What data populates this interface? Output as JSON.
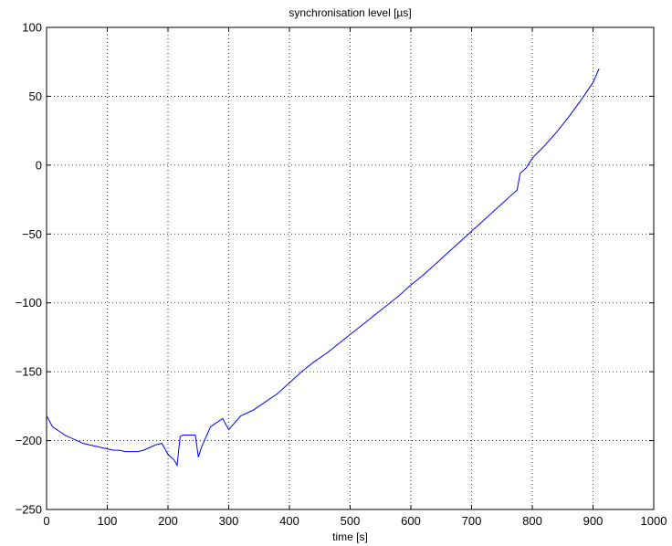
{
  "chart_data": {
    "type": "line",
    "title": "synchronisation level [µs]",
    "xlabel": "time [s]",
    "ylabel": "",
    "xlim": [
      0,
      1000
    ],
    "ylim": [
      -250,
      100
    ],
    "xticks": [
      0,
      100,
      200,
      300,
      400,
      500,
      600,
      700,
      800,
      900,
      1000
    ],
    "yticks": [
      -250,
      -200,
      -150,
      -100,
      -50,
      0,
      50,
      100
    ],
    "grid": true,
    "line_color": "#0000ff",
    "series": [
      {
        "x": [
          0,
          5,
          10,
          20,
          30,
          40,
          50,
          60,
          70,
          80,
          90,
          100,
          110,
          120,
          130,
          140,
          150,
          160,
          170,
          180,
          190,
          200,
          210,
          215,
          220,
          225,
          235,
          245,
          250,
          255,
          270,
          290,
          300,
          320,
          340,
          360,
          380,
          400,
          420,
          440,
          460,
          480,
          500,
          520,
          540,
          560,
          580,
          600,
          620,
          640,
          660,
          680,
          700,
          720,
          740,
          760,
          775,
          780,
          790,
          800,
          820,
          840,
          860,
          880,
          900,
          910
        ],
        "y": [
          -182,
          -186,
          -190,
          -193,
          -196,
          -198,
          -200,
          -202,
          -203,
          -204,
          -205,
          -206,
          -207,
          -207,
          -208,
          -208,
          -208,
          -207,
          -205,
          -203,
          -202,
          -210,
          -214,
          -218,
          -197,
          -196,
          -196,
          -196,
          -212,
          -205,
          -190,
          -184,
          -192,
          -182,
          -178,
          -172,
          -166,
          -158,
          -150,
          -143,
          -137,
          -130,
          -123,
          -116,
          -109,
          -102,
          -95,
          -87,
          -80,
          -72,
          -64,
          -56,
          -48,
          -40,
          -32,
          -24,
          -18,
          -6,
          -2,
          5,
          14,
          24,
          35,
          47,
          60,
          70
        ]
      }
    ]
  }
}
